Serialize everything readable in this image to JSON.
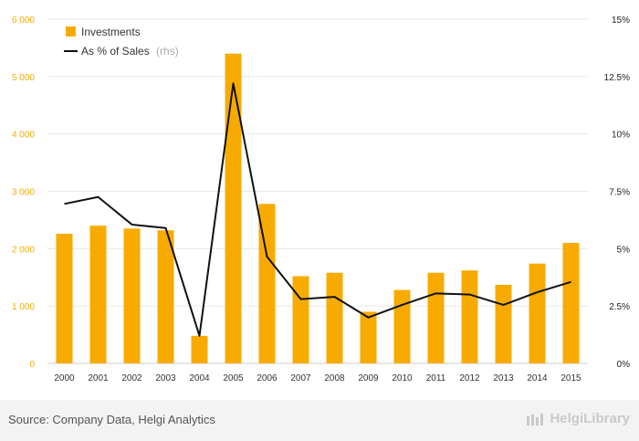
{
  "chart_data": {
    "type": "bar",
    "categories": [
      "2000",
      "2001",
      "2002",
      "2003",
      "2004",
      "2005",
      "2006",
      "2007",
      "2008",
      "2009",
      "2010",
      "2011",
      "2012",
      "2013",
      "2014",
      "2015"
    ],
    "series": [
      {
        "name": "Investments",
        "type": "bar",
        "axis": "left",
        "values": [
          2260,
          2400,
          2350,
          2320,
          480,
          5400,
          2780,
          1520,
          1580,
          900,
          1280,
          1580,
          1620,
          1370,
          1740,
          2100
        ]
      },
      {
        "name": "As % of Sales",
        "type": "line",
        "axis": "right",
        "legend_suffix": "(rhs)",
        "values": [
          6.95,
          7.25,
          6.05,
          5.9,
          1.2,
          12.2,
          4.65,
          2.8,
          2.9,
          2.0,
          2.55,
          3.05,
          3.0,
          2.55,
          3.1,
          3.55
        ]
      }
    ],
    "left_axis": {
      "min": 0,
      "max": 6000,
      "ticks": [
        "0",
        "1 000",
        "2 000",
        "3 000",
        "4 000",
        "5 000",
        "6 000"
      ]
    },
    "right_axis": {
      "min": 0,
      "max": 15,
      "ticks": [
        "0%",
        "2.5%",
        "5%",
        "7.5%",
        "10%",
        "12.5%",
        "15%"
      ]
    },
    "grid": true,
    "legend_position": "top-left",
    "colors": {
      "bar": "#f7ab00",
      "line": "#111111",
      "left_tick": "#f7ab00",
      "right_tick": "#222222",
      "grid": "#e6e6e6"
    }
  },
  "footer": {
    "source": "Source: Company Data, Helgi Analytics",
    "logo": "HelgiLibrary"
  }
}
